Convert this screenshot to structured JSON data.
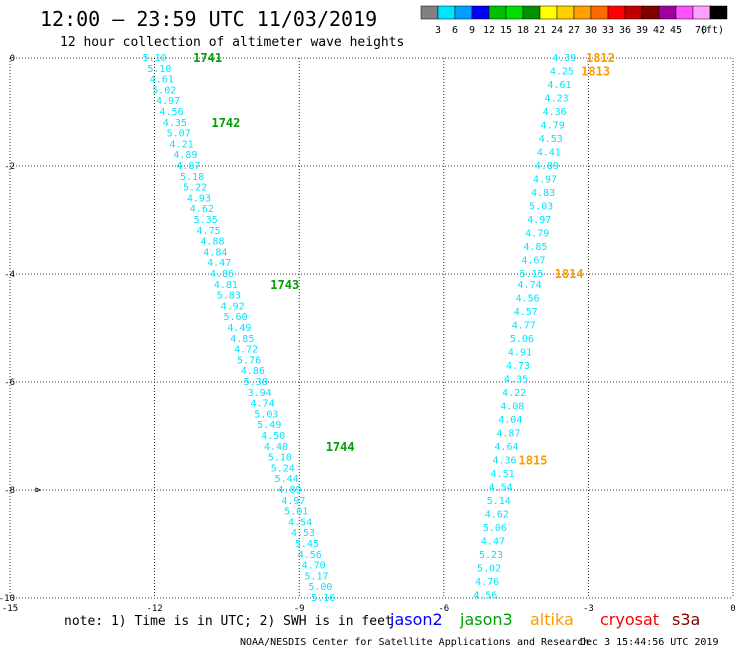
{
  "header": {
    "title": "12:00 – 23:59 UTC 11/03/2019",
    "subtitle": "12 hour collection of altimeter wave heights"
  },
  "legend": {
    "colors": [
      "#808080",
      "#00e5ff",
      "#00a0ff",
      "#0000ff",
      "#00c000",
      "#00e000",
      "#009000",
      "#ffff00",
      "#ffd000",
      "#ffa000",
      "#ff6a00",
      "#ff0000",
      "#c00000",
      "#800000",
      "#a000a0",
      "#ff50ff",
      "#ffa0ff",
      "#000000"
    ],
    "labels": [
      "3",
      "6",
      "9",
      "12",
      "15",
      "18",
      "21",
      "24",
      "27",
      "30",
      "33",
      "36",
      "39",
      "42",
      "45",
      "70"
    ],
    "unit": "(ft)"
  },
  "axes": {
    "x_ticks": [
      "-15",
      "-12",
      "-9",
      "-6",
      "-3",
      "0"
    ],
    "y_ticks": [
      "0",
      "-2",
      "-4",
      "-6",
      "-8",
      "-10"
    ],
    "xlim": [
      -15,
      0
    ],
    "ylim": [
      -10,
      0
    ]
  },
  "footer": {
    "note": "note:  1) Time is in UTC;  2) SWH is in feet",
    "satellites": [
      {
        "name": "jason2",
        "color": "#0000ff"
      },
      {
        "name": "jason3",
        "color": "#00a000"
      },
      {
        "name": "altika",
        "color": "#ff9900"
      },
      {
        "name": "cryosat",
        "color": "#ff0000"
      },
      {
        "name": "s3a",
        "color": "#800000"
      }
    ],
    "credit": "NOAA/NESDIS Center for Satellite Applications and Research",
    "timestamp": "Dec  3 15:44:56 UTC 2019"
  },
  "chart_data": {
    "type": "scatter",
    "x_range": [
      -15,
      0
    ],
    "y_range": [
      -10,
      0
    ],
    "grid": true,
    "point_color": "#00e5ff",
    "tracks": [
      {
        "satellite": "jason3",
        "color": "#00a000",
        "points": [
          {
            "lon": -12.0,
            "lat": 0.0,
            "v": "5.10"
          },
          {
            "lon": -11.9,
            "lat": -0.2,
            "v": "5.10"
          },
          {
            "lon": -11.85,
            "lat": -0.4,
            "v": "4.61"
          },
          {
            "lon": -11.8,
            "lat": -0.6,
            "v": "5.02"
          },
          {
            "lon": -11.72,
            "lat": -0.8,
            "v": "4.97"
          },
          {
            "lon": -11.65,
            "lat": -1.0,
            "v": "4.56"
          },
          {
            "lon": -11.58,
            "lat": -1.2,
            "v": "4.35"
          },
          {
            "lon": -11.5,
            "lat": -1.4,
            "v": "5.07"
          },
          {
            "lon": -11.44,
            "lat": -1.6,
            "v": "4.21"
          },
          {
            "lon": -11.36,
            "lat": -1.8,
            "v": "4.89"
          },
          {
            "lon": -11.3,
            "lat": -2.0,
            "v": "4.87"
          },
          {
            "lon": -11.22,
            "lat": -2.2,
            "v": "5.18"
          },
          {
            "lon": -11.16,
            "lat": -2.4,
            "v": "5.22"
          },
          {
            "lon": -11.08,
            "lat": -2.6,
            "v": "4.93"
          },
          {
            "lon": -11.02,
            "lat": -2.8,
            "v": "4.62"
          },
          {
            "lon": -10.94,
            "lat": -3.0,
            "v": "5.35"
          },
          {
            "lon": -10.88,
            "lat": -3.2,
            "v": "4.75"
          },
          {
            "lon": -10.8,
            "lat": -3.4,
            "v": "4.88"
          },
          {
            "lon": -10.74,
            "lat": -3.6,
            "v": "4.84"
          },
          {
            "lon": -10.66,
            "lat": -3.8,
            "v": "4.47"
          },
          {
            "lon": -10.6,
            "lat": -4.0,
            "v": "4.86"
          },
          {
            "lon": -10.52,
            "lat": -4.2,
            "v": "4.81"
          },
          {
            "lon": -10.46,
            "lat": -4.4,
            "v": "5.83"
          },
          {
            "lon": -10.38,
            "lat": -4.6,
            "v": "4.92"
          },
          {
            "lon": -10.32,
            "lat": -4.8,
            "v": "5.60"
          },
          {
            "lon": -10.24,
            "lat": -5.0,
            "v": "4.49"
          },
          {
            "lon": -10.18,
            "lat": -5.2,
            "v": "4.85"
          },
          {
            "lon": -10.1,
            "lat": -5.4,
            "v": "4.72"
          },
          {
            "lon": -10.04,
            "lat": -5.6,
            "v": "5.76"
          },
          {
            "lon": -9.96,
            "lat": -5.8,
            "v": "4.86"
          },
          {
            "lon": -9.9,
            "lat": -6.0,
            "v": "5.38"
          },
          {
            "lon": -9.82,
            "lat": -6.2,
            "v": "3.94"
          },
          {
            "lon": -9.76,
            "lat": -6.4,
            "v": "4.74"
          },
          {
            "lon": -9.68,
            "lat": -6.6,
            "v": "5.03"
          },
          {
            "lon": -9.62,
            "lat": -6.8,
            "v": "5.49"
          },
          {
            "lon": -9.54,
            "lat": -7.0,
            "v": "4.50"
          },
          {
            "lon": -9.48,
            "lat": -7.2,
            "v": "4.48"
          },
          {
            "lon": -9.4,
            "lat": -7.4,
            "v": "5.10"
          },
          {
            "lon": -9.34,
            "lat": -7.6,
            "v": "5.24"
          },
          {
            "lon": -9.26,
            "lat": -7.8,
            "v": "5.44"
          },
          {
            "lon": -9.2,
            "lat": -8.0,
            "v": "4.89"
          },
          {
            "lon": -9.12,
            "lat": -8.2,
            "v": "4.97"
          },
          {
            "lon": -9.06,
            "lat": -8.4,
            "v": "5.01"
          },
          {
            "lon": -8.98,
            "lat": -8.6,
            "v": "4.54"
          },
          {
            "lon": -8.92,
            "lat": -8.8,
            "v": "4.53"
          },
          {
            "lon": -8.84,
            "lat": -9.0,
            "v": "5.45"
          },
          {
            "lon": -8.78,
            "lat": -9.2,
            "v": "4.56"
          },
          {
            "lon": -8.7,
            "lat": -9.4,
            "v": "4.70"
          },
          {
            "lon": -8.64,
            "lat": -9.6,
            "v": "5.17"
          },
          {
            "lon": -8.56,
            "lat": -9.8,
            "v": "5.00"
          },
          {
            "lon": -8.5,
            "lat": -10.0,
            "v": "5.16"
          }
        ],
        "time_labels": [
          {
            "lon": -10.9,
            "lat": 0.0,
            "text": "1741"
          },
          {
            "lon": -10.52,
            "lat": -1.2,
            "text": "1742"
          },
          {
            "lon": -9.3,
            "lat": -4.2,
            "text": "1743"
          },
          {
            "lon": -8.15,
            "lat": -7.2,
            "text": "1744"
          }
        ]
      },
      {
        "satellite": "altika",
        "color": "#ff9900",
        "points": [
          {
            "lon": -3.5,
            "lat": 0.0,
            "v": "4.39"
          },
          {
            "lon": -3.55,
            "lat": -0.25,
            "v": "4.25"
          },
          {
            "lon": -3.6,
            "lat": -0.5,
            "v": "4.61"
          },
          {
            "lon": -3.66,
            "lat": -0.75,
            "v": "4.23"
          },
          {
            "lon": -3.7,
            "lat": -1.0,
            "v": "4.36"
          },
          {
            "lon": -3.74,
            "lat": -1.25,
            "v": "4.79"
          },
          {
            "lon": -3.78,
            "lat": -1.5,
            "v": "4.53"
          },
          {
            "lon": -3.82,
            "lat": -1.75,
            "v": "4.41"
          },
          {
            "lon": -3.86,
            "lat": -2.0,
            "v": "4.89"
          },
          {
            "lon": -3.9,
            "lat": -2.25,
            "v": "4.97"
          },
          {
            "lon": -3.94,
            "lat": -2.5,
            "v": "4.83"
          },
          {
            "lon": -3.98,
            "lat": -2.75,
            "v": "5.03"
          },
          {
            "lon": -4.02,
            "lat": -3.0,
            "v": "4.97"
          },
          {
            "lon": -4.06,
            "lat": -3.25,
            "v": "4.79"
          },
          {
            "lon": -4.1,
            "lat": -3.5,
            "v": "4.85"
          },
          {
            "lon": -4.14,
            "lat": -3.75,
            "v": "4.67"
          },
          {
            "lon": -4.18,
            "lat": -4.0,
            "v": "5.15"
          },
          {
            "lon": -4.22,
            "lat": -4.2,
            "v": "4.74"
          },
          {
            "lon": -4.26,
            "lat": -4.45,
            "v": "4.56"
          },
          {
            "lon": -4.3,
            "lat": -4.7,
            "v": "4.57"
          },
          {
            "lon": -4.34,
            "lat": -4.95,
            "v": "4.77"
          },
          {
            "lon": -4.38,
            "lat": -5.2,
            "v": "5.06"
          },
          {
            "lon": -4.42,
            "lat": -5.45,
            "v": "4.91"
          },
          {
            "lon": -4.46,
            "lat": -5.7,
            "v": "4.73"
          },
          {
            "lon": -4.5,
            "lat": -5.95,
            "v": "4.35"
          },
          {
            "lon": -4.54,
            "lat": -6.2,
            "v": "4.22"
          },
          {
            "lon": -4.58,
            "lat": -6.45,
            "v": "4.08"
          },
          {
            "lon": -4.62,
            "lat": -6.7,
            "v": "4.04"
          },
          {
            "lon": -4.66,
            "lat": -6.95,
            "v": "4.87"
          },
          {
            "lon": -4.7,
            "lat": -7.2,
            "v": "4.64"
          },
          {
            "lon": -4.74,
            "lat": -7.45,
            "v": "4.36"
          },
          {
            "lon": -4.78,
            "lat": -7.7,
            "v": "4.51"
          },
          {
            "lon": -4.82,
            "lat": -7.95,
            "v": "4.54"
          },
          {
            "lon": -4.86,
            "lat": -8.2,
            "v": "5.14"
          },
          {
            "lon": -4.9,
            "lat": -8.45,
            "v": "4.62"
          },
          {
            "lon": -4.94,
            "lat": -8.7,
            "v": "5.06"
          },
          {
            "lon": -4.98,
            "lat": -8.95,
            "v": "4.47"
          },
          {
            "lon": -5.02,
            "lat": -9.2,
            "v": "5.23"
          },
          {
            "lon": -5.06,
            "lat": -9.45,
            "v": "5.02"
          },
          {
            "lon": -5.1,
            "lat": -9.7,
            "v": "4.76"
          },
          {
            "lon": -5.14,
            "lat": -9.95,
            "v": "4.56"
          }
        ],
        "time_labels": [
          {
            "lon": -2.75,
            "lat": 0.0,
            "text": "1812"
          },
          {
            "lon": -2.85,
            "lat": -0.25,
            "text": "1813"
          },
          {
            "lon": -3.4,
            "lat": -4.0,
            "text": "1814"
          },
          {
            "lon": -4.15,
            "lat": -7.45,
            "text": "1815"
          }
        ]
      }
    ]
  }
}
